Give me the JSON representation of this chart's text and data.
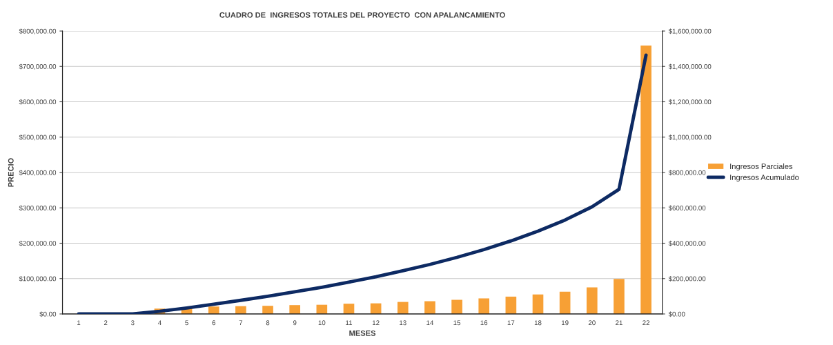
{
  "chart_data": {
    "type": "bar",
    "title": "CUADRO DE  INGRESOS TOTALES DEL PROYECTO  CON APALANCAMIENTO",
    "xlabel": "MESES",
    "ylabel": "PRECIO",
    "categories": [
      "1",
      "2",
      "3",
      "4",
      "5",
      "6",
      "7",
      "8",
      "9",
      "10",
      "11",
      "12",
      "13",
      "14",
      "15",
      "16",
      "17",
      "18",
      "19",
      "20",
      "21",
      "22"
    ],
    "series": [
      {
        "name": "Ingresos Parciales",
        "color": "#f7a035",
        "values": [
          0,
          0,
          0,
          15000,
          19000,
          21000,
          22000,
          23000,
          25000,
          26000,
          29000,
          30000,
          34000,
          36000,
          40000,
          44000,
          49000,
          55000,
          63000,
          75000,
          99000,
          759000
        ]
      },
      {
        "name": "Ingresos Acumulado",
        "type": "line",
        "axis": "y2",
        "color": "#0d2a63",
        "values": [
          0,
          0,
          0,
          15000,
          34000,
          55000,
          77000,
          100000,
          125000,
          151000,
          180000,
          210000,
          244000,
          280000,
          320000,
          364000,
          413000,
          468000,
          531000,
          606000,
          705000,
          1464000
        ]
      }
    ],
    "ylim": [
      0,
      800000
    ],
    "yticks": [
      {
        "value": 0,
        "label": "$0.00"
      },
      {
        "value": 100000,
        "label": "$100,000.00"
      },
      {
        "value": 200000,
        "label": "$200,000.00"
      },
      {
        "value": 300000,
        "label": "$300,000.00"
      },
      {
        "value": 400000,
        "label": "$400,000.00"
      },
      {
        "value": 500000,
        "label": "$500,000.00"
      },
      {
        "value": 600000,
        "label": "$600,000.00"
      },
      {
        "value": 700000,
        "label": "$700,000.00"
      },
      {
        "value": 800000,
        "label": "$800,000.00"
      }
    ],
    "y2lim": [
      0,
      1600000
    ],
    "y2ticks": [
      {
        "value": 0,
        "label": "$0.00"
      },
      {
        "value": 200000,
        "label": "$200,000.00"
      },
      {
        "value": 400000,
        "label": "$400,000.00"
      },
      {
        "value": 600000,
        "label": "$600,000.00"
      },
      {
        "value": 800000,
        "label": "$800,000.00"
      },
      {
        "value": 1000000,
        "label": "$1,000,000.00"
      },
      {
        "value": 1200000,
        "label": "$1,200,000.00"
      },
      {
        "value": 1400000,
        "label": "$1,400,000.00"
      },
      {
        "value": 1600000,
        "label": "$1,600,000.00"
      }
    ],
    "grid": "y",
    "legend": "right",
    "marker": "none"
  }
}
